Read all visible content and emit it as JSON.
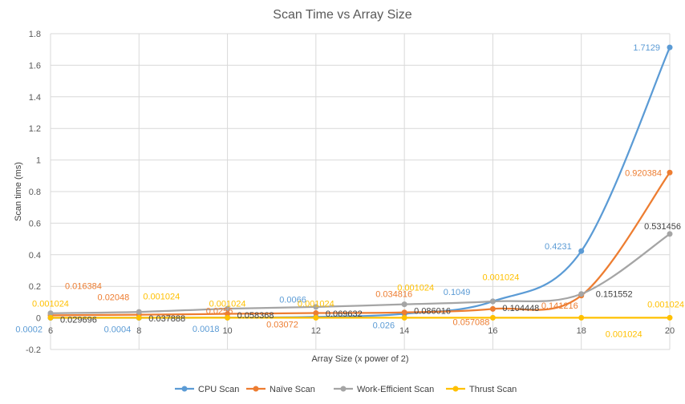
{
  "chart_data": {
    "type": "line",
    "title": "Scan Time vs Array Size",
    "xlabel": "Array Size (x power of 2)",
    "ylabel": "Scan time (ms)",
    "x": [
      6,
      8,
      10,
      12,
      14,
      16,
      18,
      20
    ],
    "xlim": [
      6,
      20
    ],
    "ylim": [
      -0.2,
      1.8
    ],
    "ystep": 0.2,
    "yticks": [
      "-0.2",
      "0",
      "0.2",
      "0.4",
      "0.6",
      "0.8",
      "1",
      "1.2",
      "1.4",
      "1.6",
      "1.8"
    ],
    "xticks": [
      "6",
      "8",
      "10",
      "12",
      "14",
      "16",
      "18",
      "20"
    ],
    "grid": true,
    "legend_position": "bottom",
    "series": [
      {
        "name": "CPU Scan",
        "color": "#5B9BD5",
        "values": [
          0.0002,
          0.0004,
          0.0018,
          0.0066,
          0.026,
          0.1049,
          0.4231,
          1.7129
        ],
        "labels": [
          "0.0002",
          "0.0004",
          "0.0018",
          "0.0066",
          "0.026",
          "0.1049",
          "0.4231",
          "1.7129"
        ]
      },
      {
        "name": "Naïve Scan",
        "color": "#ED7D31",
        "values": [
          0.016384,
          0.02048,
          0.0256,
          0.03072,
          0.034816,
          0.057088,
          0.141216,
          0.920384
        ],
        "labels": [
          "0.016384",
          "0.02048",
          "0.0256",
          "0.03072",
          "0.034816",
          "0.057088",
          "0.141216",
          "0.920384"
        ]
      },
      {
        "name": "Work-Efficient Scan",
        "color": "#A5A5A5",
        "values": [
          0.029696,
          0.037888,
          0.058368,
          0.069632,
          0.086016,
          0.104448,
          0.151552,
          0.531456
        ],
        "labels": [
          "0.029696",
          "0.037888",
          "0.058368",
          "0.069632",
          "0.086016",
          "0.104448",
          "0.151552",
          "0.531456"
        ]
      },
      {
        "name": "Thrust Scan",
        "color": "#FFC000",
        "values": [
          0.001024,
          0.001024,
          0.001024,
          0.001024,
          0.001024,
          0.001024,
          0.001024,
          0.001024
        ],
        "labels": [
          "0.001024",
          "0.001024",
          "0.001024",
          "0.001024",
          "0.001024",
          "0.001024",
          "0.001024",
          "0.001024"
        ]
      }
    ]
  }
}
